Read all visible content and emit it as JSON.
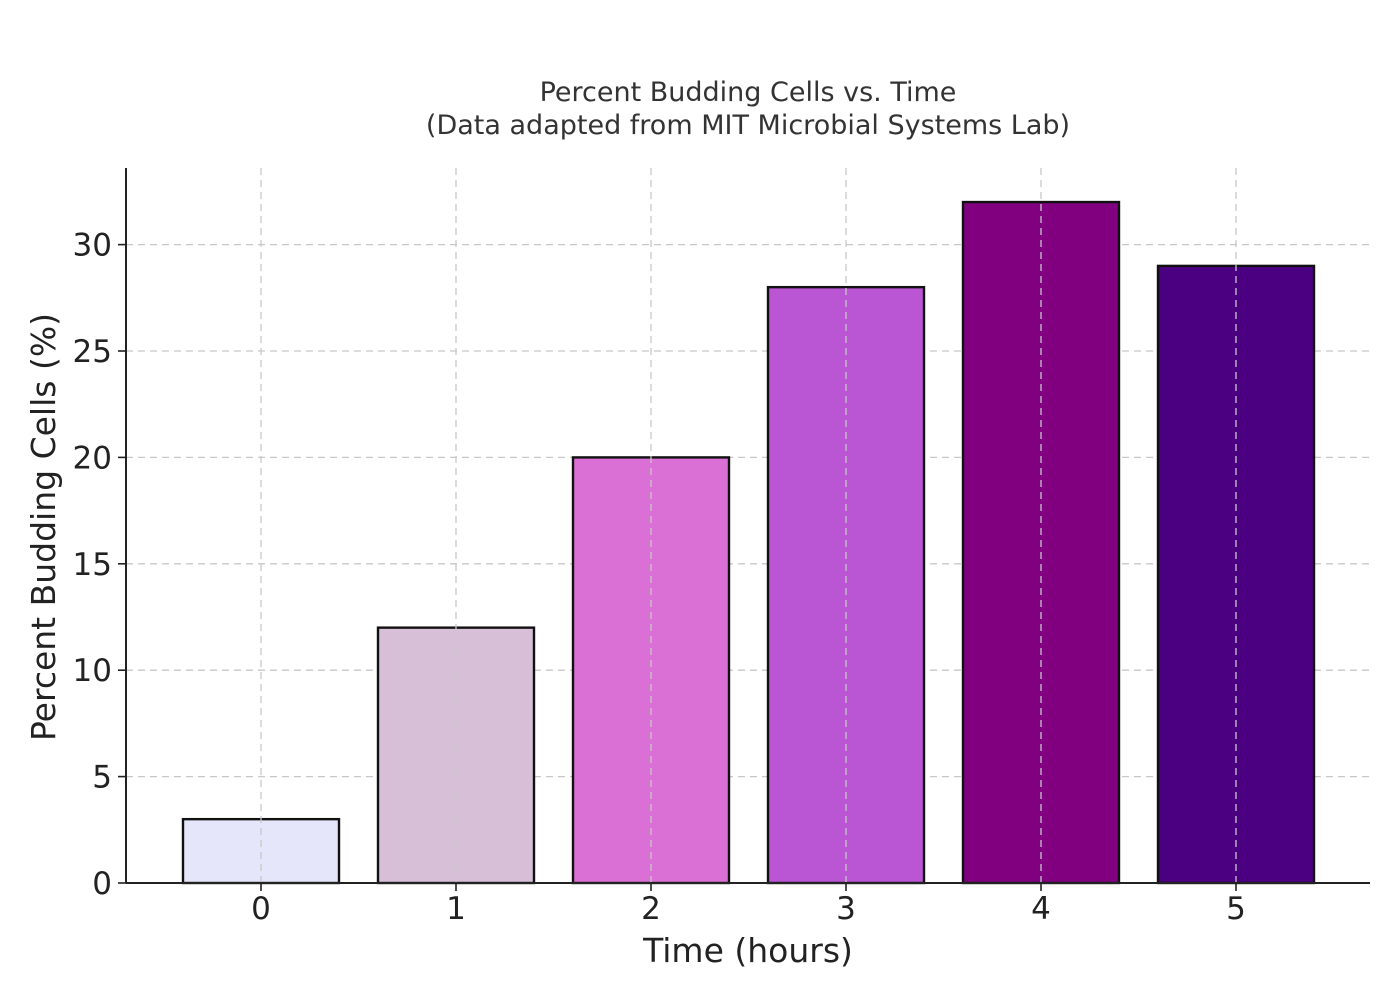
{
  "chart_data": {
    "type": "bar",
    "title": "Percent Budding Cells vs. Time",
    "subtitle": "(Data adapted from MIT Microbial Systems Lab)",
    "xlabel": "Time (hours)",
    "ylabel": "Percent Budding Cells (%)",
    "categories": [
      "0",
      "1",
      "2",
      "3",
      "4",
      "5"
    ],
    "values": [
      3,
      12,
      20,
      28,
      32,
      29
    ],
    "colors": [
      "#e6e6fa",
      "#d8bfd8",
      "#da70d6",
      "#ba55d3",
      "#800080",
      "#4b0082"
    ],
    "ylim": [
      0,
      33.6
    ],
    "yticks": [
      0,
      5,
      10,
      15,
      20,
      25,
      30
    ],
    "grid": true,
    "legend": "none"
  }
}
